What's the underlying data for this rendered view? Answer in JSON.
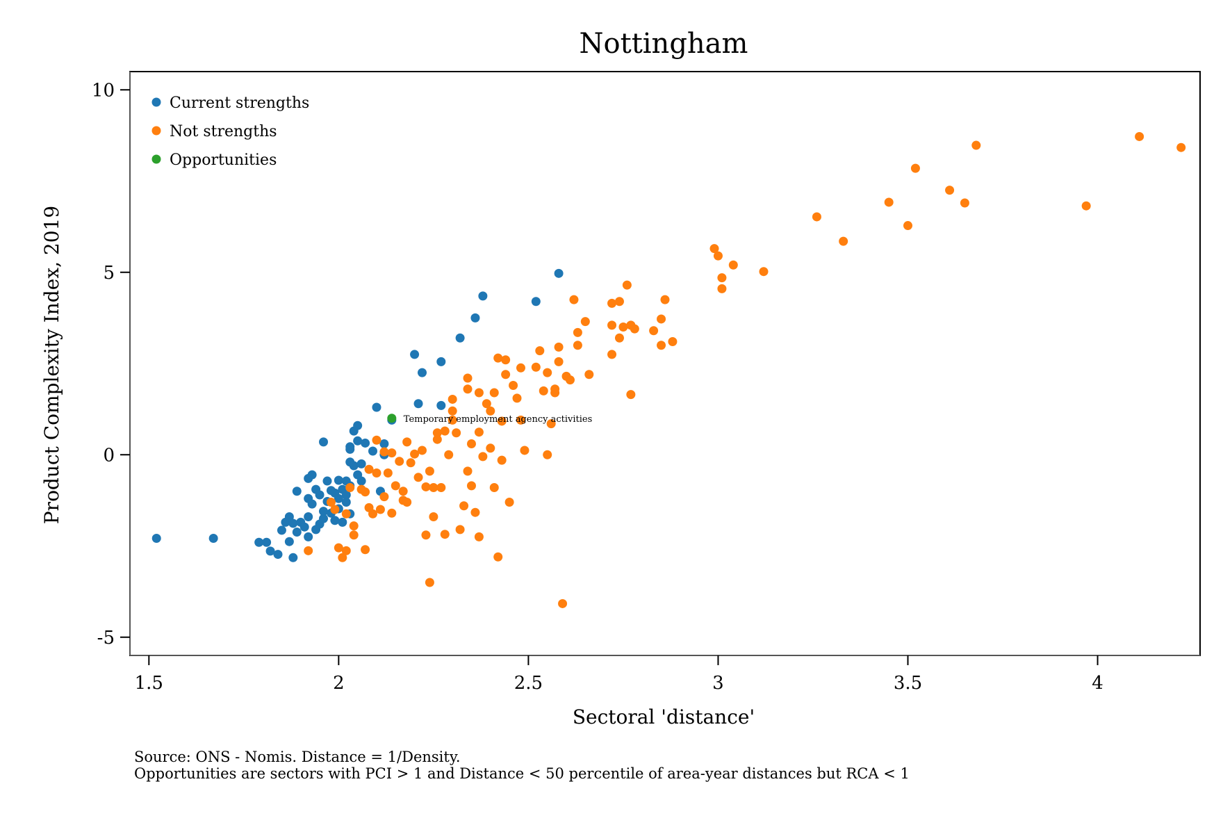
{
  "colors": {
    "current": "#1f77b4",
    "not": "#ff7f0e",
    "opportunity": "#2ca02c"
  },
  "notes": {
    "line1": "Source: ONS - Nomis. Distance = 1/Density.",
    "line2": "Opportunities are sectors with PCI > 1 and Distance < 50 percentile of area-year distances but RCA < 1"
  },
  "chart_data": {
    "type": "scatter",
    "title": "Nottingham",
    "xlabel": "Sectoral 'distance'",
    "ylabel": "Product Complexity Index, 2019",
    "xlim": [
      1.45,
      4.27
    ],
    "ylim": [
      -5.5,
      10.5
    ],
    "xticks": [
      1.5,
      2,
      2.5,
      3,
      3.5,
      4
    ],
    "xtick_labels": [
      "1.5",
      "2",
      "2.5",
      "3",
      "3.5",
      "4"
    ],
    "yticks": [
      -5,
      0,
      5,
      10
    ],
    "ytick_labels": [
      "-5",
      "0",
      "5",
      "10"
    ],
    "grid": false,
    "legend_position": "top-left",
    "annotations": [
      {
        "text": "Temporary employment agency activities",
        "x": 2.14,
        "y": 1.0
      }
    ],
    "series": [
      {
        "name": "Current strengths",
        "color": "#1f77b4",
        "points": [
          [
            1.52,
            -2.29
          ],
          [
            1.67,
            -2.29
          ],
          [
            1.79,
            -2.4
          ],
          [
            1.81,
            -2.4
          ],
          [
            1.82,
            -2.64
          ],
          [
            1.84,
            -2.73
          ],
          [
            1.85,
            -2.07
          ],
          [
            1.86,
            -1.85
          ],
          [
            1.87,
            -1.7
          ],
          [
            1.87,
            -2.38
          ],
          [
            1.88,
            -2.82
          ],
          [
            1.88,
            -1.88
          ],
          [
            1.89,
            -2.12
          ],
          [
            1.89,
            -1.0
          ],
          [
            1.9,
            -1.85
          ],
          [
            1.91,
            -1.98
          ],
          [
            1.92,
            -2.25
          ],
          [
            1.92,
            -1.7
          ],
          [
            1.92,
            -1.2
          ],
          [
            1.92,
            -0.65
          ],
          [
            1.93,
            -0.55
          ],
          [
            1.94,
            -0.95
          ],
          [
            1.95,
            -1.1
          ],
          [
            1.95,
            -1.9
          ],
          [
            1.96,
            -1.55
          ],
          [
            1.96,
            0.35
          ],
          [
            1.97,
            -0.72
          ],
          [
            1.97,
            -1.28
          ],
          [
            1.98,
            -1.6
          ],
          [
            1.98,
            -0.98
          ],
          [
            1.99,
            -1.05
          ],
          [
            1.99,
            -1.8
          ],
          [
            2.0,
            -0.7
          ],
          [
            2.0,
            -1.2
          ],
          [
            2.0,
            -1.48
          ],
          [
            2.01,
            -0.95
          ],
          [
            2.01,
            -1.85
          ],
          [
            2.02,
            -0.72
          ],
          [
            2.02,
            -1.1
          ],
          [
            2.03,
            -1.62
          ],
          [
            2.03,
            0.22
          ],
          [
            2.03,
            0.15
          ],
          [
            2.03,
            -0.2
          ],
          [
            2.03,
            -0.85
          ],
          [
            2.04,
            0.65
          ],
          [
            2.04,
            -0.3
          ],
          [
            2.05,
            -0.55
          ],
          [
            2.05,
            0.8
          ],
          [
            2.05,
            0.38
          ],
          [
            2.06,
            -0.72
          ],
          [
            2.06,
            -0.25
          ],
          [
            2.07,
            0.32
          ],
          [
            2.09,
            0.1
          ],
          [
            2.1,
            1.3
          ],
          [
            2.11,
            -1.0
          ],
          [
            2.12,
            0.0
          ],
          [
            2.12,
            0.3
          ],
          [
            2.14,
            0.95
          ],
          [
            2.2,
            2.75
          ],
          [
            2.21,
            1.4
          ],
          [
            2.22,
            2.25
          ],
          [
            2.27,
            2.55
          ],
          [
            2.27,
            1.35
          ],
          [
            2.32,
            3.2
          ],
          [
            2.36,
            3.75
          ],
          [
            2.38,
            4.35
          ],
          [
            2.52,
            4.2
          ],
          [
            2.58,
            4.97
          ],
          [
            1.93,
            -1.35
          ],
          [
            1.96,
            -1.75
          ],
          [
            1.94,
            -2.05
          ],
          [
            2.02,
            -1.3
          ]
        ]
      },
      {
        "name": "Not strengths",
        "color": "#ff7f0e",
        "points": [
          [
            1.92,
            -2.63
          ],
          [
            1.98,
            -1.3
          ],
          [
            1.99,
            -1.5
          ],
          [
            2.0,
            -2.55
          ],
          [
            2.01,
            -2.82
          ],
          [
            2.02,
            -1.62
          ],
          [
            2.02,
            -2.63
          ],
          [
            2.03,
            -0.9
          ],
          [
            2.04,
            -1.95
          ],
          [
            2.04,
            -2.2
          ],
          [
            2.06,
            -0.95
          ],
          [
            2.07,
            -1.02
          ],
          [
            2.07,
            -2.6
          ],
          [
            2.08,
            -0.4
          ],
          [
            2.09,
            -1.62
          ],
          [
            2.1,
            -0.5
          ],
          [
            2.11,
            -1.5
          ],
          [
            2.12,
            0.08
          ],
          [
            2.12,
            -1.15
          ],
          [
            2.13,
            -0.5
          ],
          [
            2.14,
            -1.6
          ],
          [
            2.14,
            0.05
          ],
          [
            2.15,
            -0.85
          ],
          [
            2.16,
            -0.18
          ],
          [
            2.17,
            -1.25
          ],
          [
            2.17,
            -1.0
          ],
          [
            2.18,
            0.35
          ],
          [
            2.19,
            -0.22
          ],
          [
            2.2,
            0.02
          ],
          [
            2.21,
            -0.62
          ],
          [
            2.22,
            0.12
          ],
          [
            2.23,
            -2.2
          ],
          [
            2.23,
            -0.88
          ],
          [
            2.24,
            -3.5
          ],
          [
            2.24,
            -0.45
          ],
          [
            2.25,
            -1.7
          ],
          [
            2.25,
            -0.9
          ],
          [
            2.26,
            0.42
          ],
          [
            2.26,
            0.6
          ],
          [
            2.27,
            -0.9
          ],
          [
            2.28,
            -2.18
          ],
          [
            2.29,
            0.0
          ],
          [
            2.3,
            1.52
          ],
          [
            2.3,
            1.2
          ],
          [
            2.31,
            0.6
          ],
          [
            2.32,
            -2.05
          ],
          [
            2.33,
            -1.4
          ],
          [
            2.34,
            2.1
          ],
          [
            2.34,
            1.8
          ],
          [
            2.34,
            -0.45
          ],
          [
            2.35,
            0.3
          ],
          [
            2.35,
            -0.85
          ],
          [
            2.36,
            -1.58
          ],
          [
            2.37,
            -2.25
          ],
          [
            2.37,
            0.62
          ],
          [
            2.37,
            1.7
          ],
          [
            2.38,
            -0.05
          ],
          [
            2.39,
            1.4
          ],
          [
            2.4,
            0.18
          ],
          [
            2.4,
            1.2
          ],
          [
            2.41,
            1.7
          ],
          [
            2.41,
            -0.9
          ],
          [
            2.42,
            2.65
          ],
          [
            2.42,
            -2.8
          ],
          [
            2.43,
            0.92
          ],
          [
            2.43,
            -0.15
          ],
          [
            2.44,
            2.6
          ],
          [
            2.44,
            2.2
          ],
          [
            2.45,
            -1.3
          ],
          [
            2.46,
            1.9
          ],
          [
            2.47,
            1.55
          ],
          [
            2.48,
            0.95
          ],
          [
            2.48,
            2.38
          ],
          [
            2.49,
            0.12
          ],
          [
            2.52,
            2.4
          ],
          [
            2.53,
            2.85
          ],
          [
            2.54,
            1.75
          ],
          [
            2.55,
            2.25
          ],
          [
            2.55,
            0.0
          ],
          [
            2.56,
            0.85
          ],
          [
            2.57,
            1.7
          ],
          [
            2.57,
            1.8
          ],
          [
            2.58,
            2.95
          ],
          [
            2.58,
            2.55
          ],
          [
            2.59,
            -4.08
          ],
          [
            2.6,
            2.15
          ],
          [
            2.61,
            2.05
          ],
          [
            2.62,
            4.25
          ],
          [
            2.63,
            3.35
          ],
          [
            2.63,
            3.0
          ],
          [
            2.65,
            3.65
          ],
          [
            2.66,
            2.2
          ],
          [
            2.72,
            4.15
          ],
          [
            2.72,
            3.55
          ],
          [
            2.72,
            2.75
          ],
          [
            2.74,
            4.2
          ],
          [
            2.74,
            3.2
          ],
          [
            2.75,
            3.5
          ],
          [
            2.76,
            4.65
          ],
          [
            2.77,
            1.65
          ],
          [
            2.77,
            3.55
          ],
          [
            2.78,
            3.45
          ],
          [
            2.83,
            3.4
          ],
          [
            2.85,
            3.72
          ],
          [
            2.85,
            3.0
          ],
          [
            2.86,
            4.25
          ],
          [
            2.88,
            3.1
          ],
          [
            2.99,
            5.65
          ],
          [
            3.0,
            5.45
          ],
          [
            3.01,
            4.85
          ],
          [
            3.01,
            4.55
          ],
          [
            3.04,
            5.2
          ],
          [
            3.12,
            5.02
          ],
          [
            3.26,
            6.52
          ],
          [
            3.33,
            5.85
          ],
          [
            3.45,
            6.92
          ],
          [
            3.5,
            6.28
          ],
          [
            3.52,
            7.85
          ],
          [
            3.61,
            7.25
          ],
          [
            3.65,
            6.9
          ],
          [
            3.68,
            8.48
          ],
          [
            3.97,
            6.82
          ],
          [
            4.11,
            8.72
          ],
          [
            4.22,
            8.42
          ],
          [
            2.3,
            0.95
          ],
          [
            2.28,
            0.65
          ],
          [
            2.18,
            -1.3
          ],
          [
            2.08,
            -1.45
          ],
          [
            2.1,
            0.4
          ]
        ]
      },
      {
        "name": "Opportunities",
        "color": "#2ca02c",
        "points": [
          [
            2.14,
            1.0
          ]
        ]
      }
    ]
  }
}
